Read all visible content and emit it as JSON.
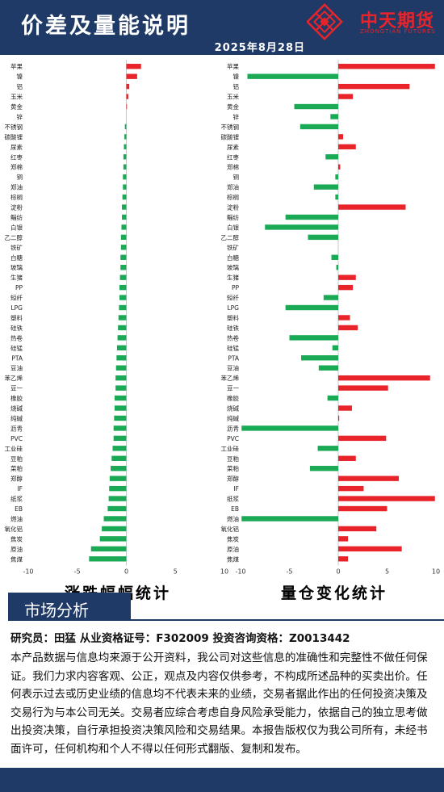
{
  "header": {
    "title": "价差及量能说明",
    "date": "2025年8月28日",
    "logo_name": "中天期货",
    "logo_sub": "ZHONGTIAN FUTURES"
  },
  "colors": {
    "brand": "#1f3a66",
    "up": "#e8242a",
    "down": "#1aaa55",
    "logo": "#e8242a"
  },
  "chart_data": [
    {
      "type": "bar",
      "orientation": "horizontal",
      "title": "涨跌幅幅统计",
      "xlim": [
        -10,
        10
      ],
      "xticks": [
        -10,
        -5,
        0,
        5,
        10
      ],
      "categories": [
        "苹果",
        "镍",
        "铝",
        "玉米",
        "黄金",
        "锌",
        "不锈钢",
        "碳酸锂",
        "尿素",
        "红枣",
        "郑棉",
        "铜",
        "郑油",
        "棕榈",
        "淀粉",
        "鲻纺",
        "白银",
        "乙二醇",
        "铁矿",
        "白糖",
        "玻璃",
        "生猪",
        "PP",
        "短纤",
        "LPG",
        "塑料",
        "硅铁",
        "热卷",
        "硅锰",
        "PTA",
        "豆油",
        "苯乙烯",
        "豆一",
        "橡胶",
        "烧碱",
        "纯碱",
        "沥青",
        "PVC",
        "工业硅",
        "豆粕",
        "菜粕",
        "郑醇",
        "IF",
        "纸浆",
        "EB",
        "燃油",
        "氧化铝",
        "焦炭",
        "原油",
        "焦煤"
      ],
      "values": [
        1.5,
        1.1,
        0.3,
        0.2,
        0.05,
        0,
        -0.15,
        -0.2,
        -0.25,
        -0.3,
        -0.3,
        -0.35,
        -0.35,
        -0.4,
        -0.45,
        -0.45,
        -0.5,
        -0.55,
        -0.55,
        -0.6,
        -0.6,
        -0.65,
        -0.7,
        -0.7,
        -0.75,
        -0.8,
        -0.85,
        -0.9,
        -0.95,
        -1.0,
        -1.05,
        -1.1,
        -1.1,
        -1.2,
        -1.2,
        -1.25,
        -1.3,
        -1.3,
        -1.4,
        -1.5,
        -1.6,
        -1.7,
        -1.75,
        -1.8,
        -1.9,
        -2.3,
        -2.5,
        -2.7,
        -3.6,
        -3.8
      ]
    },
    {
      "type": "bar",
      "orientation": "horizontal",
      "title": "量仓变化统计",
      "xlim": [
        -10,
        10
      ],
      "xticks": [
        -10,
        -5,
        0,
        5,
        10
      ],
      "categories": [
        "苹果",
        "镍",
        "铝",
        "玉米",
        "黄金",
        "锌",
        "不锈钢",
        "碳酸锂",
        "尿素",
        "红枣",
        "郑棉",
        "铜",
        "郑油",
        "棕榈",
        "淀粉",
        "鲻纺",
        "白银",
        "乙二醇",
        "铁矿",
        "白糖",
        "玻璃",
        "生猪",
        "PP",
        "短纤",
        "LPG",
        "塑料",
        "硅铁",
        "热卷",
        "硅锰",
        "PTA",
        "豆油",
        "苯乙烯",
        "豆一",
        "橡胶",
        "烧碱",
        "纯碱",
        "沥青",
        "PVC",
        "工业硅",
        "豆粕",
        "菜粕",
        "郑醇",
        "IF",
        "纸浆",
        "EB",
        "燃油",
        "氧化铝",
        "焦炭",
        "原油",
        "焦煤"
      ],
      "values": [
        9.9,
        -9.3,
        7.3,
        1.5,
        -4.5,
        -0.8,
        -3.9,
        0.5,
        1.8,
        -1.3,
        0.2,
        -0.3,
        -2.5,
        -0.3,
        6.9,
        -5.4,
        -7.5,
        -3.1,
        0,
        -0.7,
        -0.2,
        1.8,
        1.5,
        -1.5,
        -5.4,
        1.2,
        2.0,
        -5.0,
        -0.6,
        -3.8,
        -2.0,
        9.4,
        5.1,
        -1.1,
        1.4,
        0.1,
        -9.9,
        4.9,
        -2.1,
        1.8,
        -2.9,
        6.2,
        2.6,
        9.9,
        5.0,
        -9.9,
        3.9,
        1.0,
        6.5,
        1.0
      ]
    }
  ],
  "section": {
    "label": "市场分析"
  },
  "researcher": {
    "text": "研究员：田猛    从业资格证号：F302009    投资咨询资格：Z0013442"
  },
  "disclaimer": "本产品数据与信息均来源于公开资料，我公司对这些信息的准确性和完整性不做任何保证。我们力求内容客观、公正，观点及内容仅供参考，不构成所述品种的买卖出价。任何表示过去或历史业绩的信息均不代表未来的业绩，交易者据此作出的任何投资决策及交易行为与本公司无关。交易者应综合考虑自身风险承受能力，依据自己的独立思考做出投资决策，自行承担投资决策风险和交易结果。本报告版权仅为我公司所有，未经书面许可，任何机构和个人不得以任何形式翻版、复制和发布。"
}
